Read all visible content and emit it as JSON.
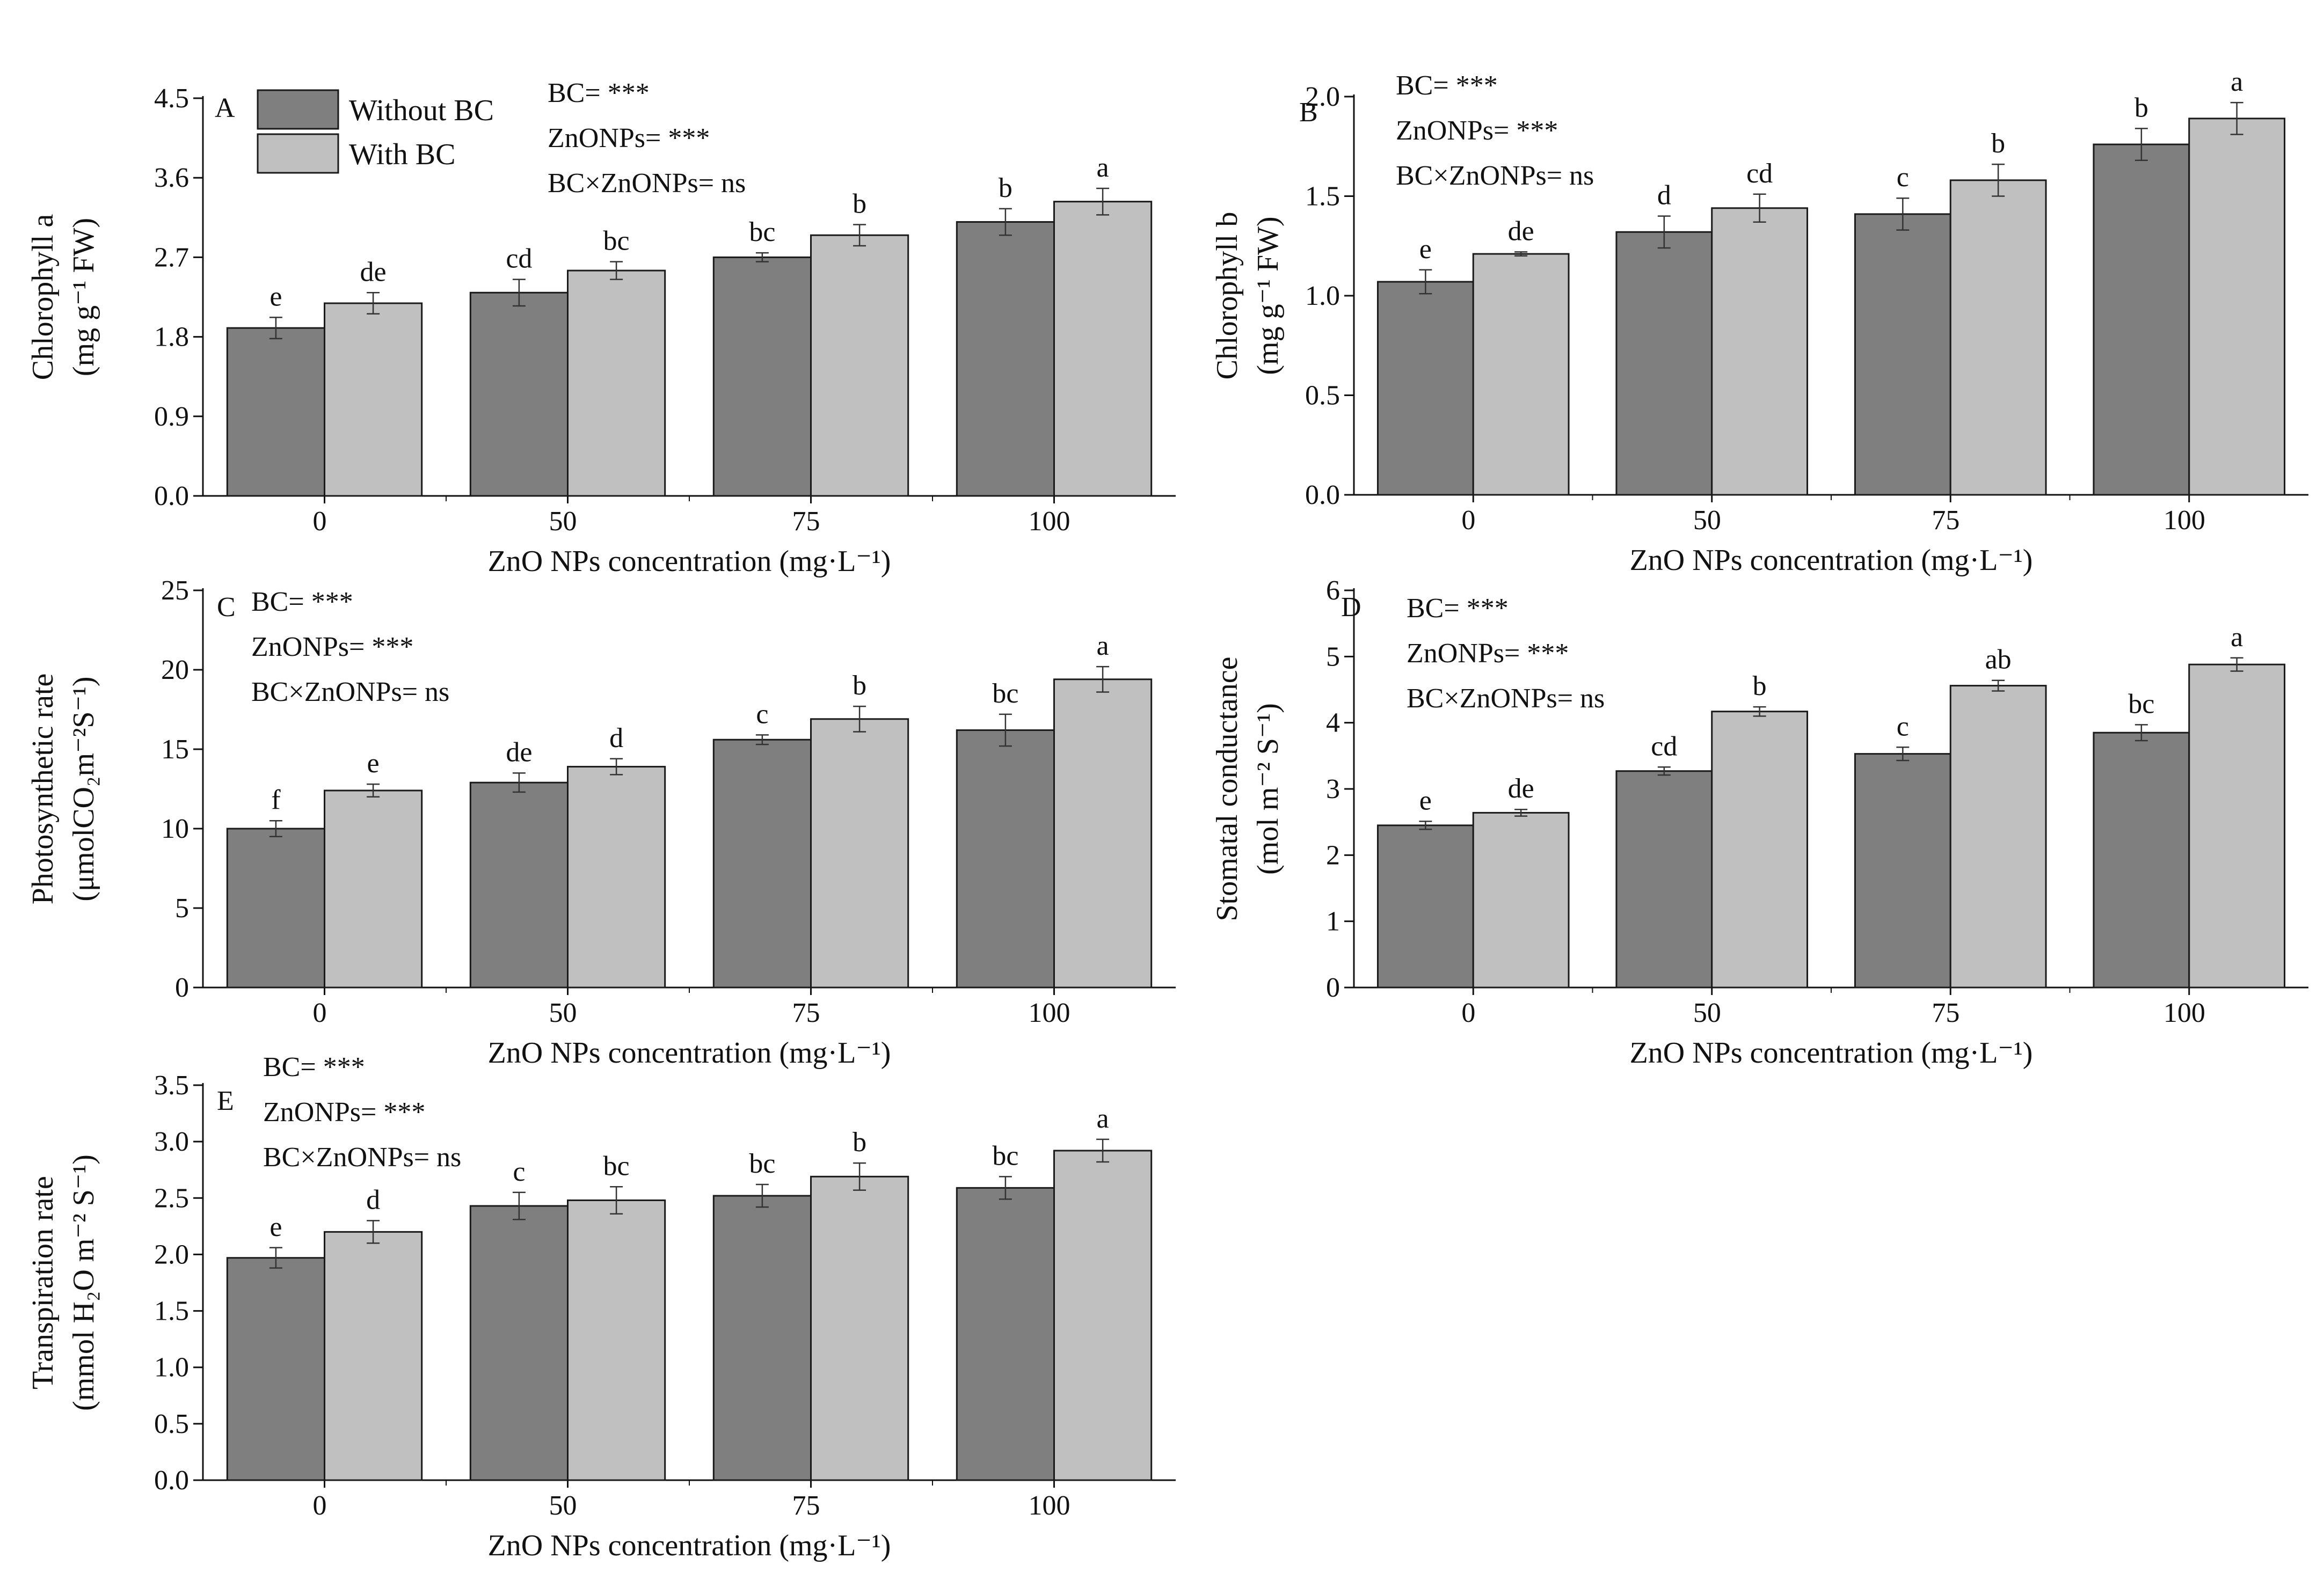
{
  "colors": {
    "without_bc": "#7f7f7f",
    "with_bc": "#c0c0c0",
    "axis": "#111111",
    "error": "#333333"
  },
  "legend": {
    "items": [
      {
        "name": "Without BC",
        "color_key": "without_bc"
      },
      {
        "name": "With BC",
        "color_key": "with_bc"
      }
    ]
  },
  "chart_data": [
    {
      "panel": "A",
      "type": "bar",
      "categories": [
        "0",
        "50",
        "75",
        "100"
      ],
      "xlabel": "ZnO NPs concentration (mg·L⁻¹)",
      "ylabel_line1": "Chlorophyll a",
      "ylabel_line2": "(mg g⁻¹ FW)",
      "ylim": [
        0,
        4.5
      ],
      "yticks": [
        0.0,
        0.9,
        1.8,
        2.7,
        3.6,
        4.5
      ],
      "ytick_decimals": 1,
      "stats": [
        "BC= ***",
        "ZnONPs= ***",
        "BC×ZnONPs= ns"
      ],
      "series": [
        {
          "name": "Without BC",
          "values": [
            1.9,
            2.3,
            2.7,
            3.1
          ],
          "errors": [
            0.12,
            0.15,
            0.05,
            0.15
          ],
          "letters": [
            "e",
            "cd",
            "bc",
            "b"
          ]
        },
        {
          "name": "With BC",
          "values": [
            2.18,
            2.55,
            2.95,
            3.33
          ],
          "errors": [
            0.12,
            0.1,
            0.12,
            0.15
          ],
          "letters": [
            "de",
            "bc",
            "b",
            "a"
          ]
        }
      ]
    },
    {
      "panel": "B",
      "type": "bar",
      "categories": [
        "0",
        "50",
        "75",
        "100"
      ],
      "xlabel": "ZnO NPs concentration (mg·L⁻¹)",
      "ylabel_line1": "Chlorophyll b",
      "ylabel_line2": "(mg g⁻¹ FW)",
      "ylim": [
        0,
        2.0
      ],
      "yticks": [
        0.0,
        0.5,
        1.0,
        1.5,
        2.0
      ],
      "ytick_decimals": 1,
      "stats": [
        "BC= ***",
        "ZnONPs= ***",
        "BC×ZnONPs= ns"
      ],
      "series": [
        {
          "name": "Without BC",
          "values": [
            1.07,
            1.32,
            1.41,
            1.76
          ],
          "errors": [
            0.06,
            0.08,
            0.08,
            0.08
          ],
          "letters": [
            "e",
            "d",
            "c",
            "b"
          ]
        },
        {
          "name": "With BC",
          "values": [
            1.21,
            1.44,
            1.58,
            1.89
          ],
          "errors": [
            0.01,
            0.07,
            0.08,
            0.08
          ],
          "letters": [
            "de",
            "cd",
            "b",
            "a"
          ]
        }
      ]
    },
    {
      "panel": "C",
      "type": "bar",
      "categories": [
        "0",
        "50",
        "75",
        "100"
      ],
      "xlabel": "ZnO NPs concentration (mg·L⁻¹)",
      "ylabel_line1": "Photosynthetic rate",
      "ylabel_line2": "(μmolCO₂m⁻²S⁻¹)",
      "ylim": [
        0,
        25
      ],
      "yticks": [
        0,
        5,
        10,
        15,
        20,
        25
      ],
      "ytick_decimals": 0,
      "stats": [
        "BC= ***",
        "ZnONPs= ***",
        "BC×ZnONPs= ns"
      ],
      "series": [
        {
          "name": "Without BC",
          "values": [
            10.0,
            12.9,
            15.6,
            16.2
          ],
          "errors": [
            0.5,
            0.6,
            0.3,
            1.0
          ],
          "letters": [
            "f",
            "de",
            "c",
            "bc"
          ]
        },
        {
          "name": "With BC",
          "values": [
            12.4,
            13.9,
            16.9,
            19.4
          ],
          "errors": [
            0.4,
            0.5,
            0.8,
            0.8
          ],
          "letters": [
            "e",
            "d",
            "b",
            "a"
          ]
        }
      ]
    },
    {
      "panel": "D",
      "type": "bar",
      "categories": [
        "0",
        "50",
        "75",
        "100"
      ],
      "xlabel": "ZnO NPs concentration (mg·L⁻¹)",
      "ylabel_line1": "Stomatal conductance",
      "ylabel_line2": "(mol m⁻² S⁻¹)",
      "ylim": [
        0,
        6
      ],
      "yticks": [
        0,
        1,
        2,
        3,
        4,
        5,
        6
      ],
      "ytick_decimals": 0,
      "stats": [
        "BC= ***",
        "ZnONPs= ***",
        "BC×ZnONPs= ns"
      ],
      "series": [
        {
          "name": "Without BC",
          "values": [
            2.45,
            3.27,
            3.53,
            3.85
          ],
          "errors": [
            0.06,
            0.06,
            0.1,
            0.12
          ],
          "letters": [
            "e",
            "cd",
            "c",
            "bc"
          ]
        },
        {
          "name": "With BC",
          "values": [
            2.64,
            4.17,
            4.56,
            4.88
          ],
          "errors": [
            0.05,
            0.07,
            0.08,
            0.1
          ],
          "letters": [
            "de",
            "b",
            "ab",
            "a"
          ]
        }
      ]
    },
    {
      "panel": "E",
      "type": "bar",
      "categories": [
        "0",
        "50",
        "75",
        "100"
      ],
      "xlabel": "ZnO NPs concentration (mg·L⁻¹)",
      "ylabel_line1": "Transpiration rate",
      "ylabel_line2": "(mmol H₂O m⁻² S⁻¹)",
      "ylim": [
        0,
        3.5
      ],
      "yticks": [
        0.0,
        0.5,
        1.0,
        1.5,
        2.0,
        2.5,
        3.0,
        3.5
      ],
      "ytick_decimals": 1,
      "stats": [
        "BC= ***",
        "ZnONPs= ***",
        "BC×ZnONPs= ns"
      ],
      "series": [
        {
          "name": "Without BC",
          "values": [
            1.97,
            2.43,
            2.52,
            2.59
          ],
          "errors": [
            0.09,
            0.12,
            0.1,
            0.1
          ],
          "letters": [
            "e",
            "c",
            "bc",
            "bc"
          ]
        },
        {
          "name": "With BC",
          "values": [
            2.2,
            2.48,
            2.69,
            2.92
          ],
          "errors": [
            0.1,
            0.12,
            0.12,
            0.1
          ],
          "letters": [
            "d",
            "bc",
            "b",
            "a"
          ]
        }
      ]
    }
  ]
}
